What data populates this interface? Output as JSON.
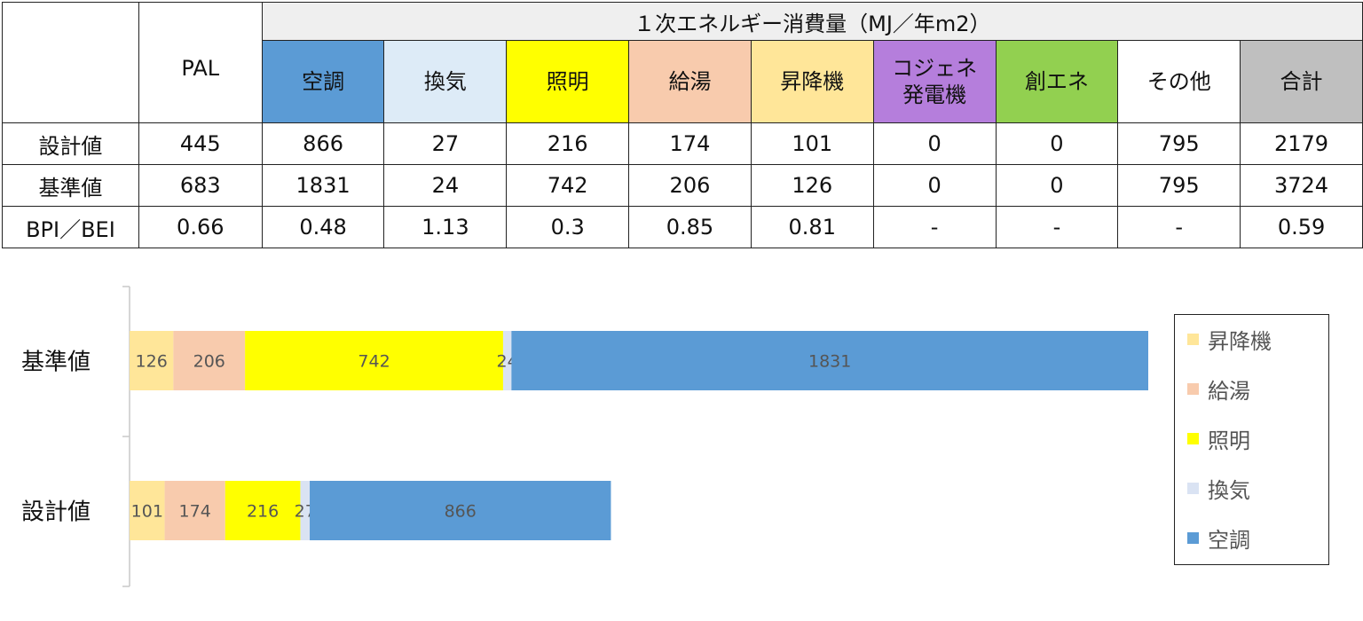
{
  "table": {
    "group_header": "１次エネルギー消費量（MJ／年m2）",
    "pal_header": "PAL",
    "categories": [
      {
        "label": "空調",
        "color": "#5b9bd5"
      },
      {
        "label": "換気",
        "color": "#ddebf7"
      },
      {
        "label": "照明",
        "color": "#ffff00"
      },
      {
        "label": "給湯",
        "color": "#f8cbad"
      },
      {
        "label": "昇降機",
        "color": "#ffe699"
      },
      {
        "label": "コジェネ発電機",
        "color": "#b57edc"
      },
      {
        "label": "創エネ",
        "color": "#92d050"
      },
      {
        "label": "その他",
        "color": "#ffffff"
      },
      {
        "label": "合計",
        "color": "#bfbfbf"
      }
    ],
    "rows": [
      {
        "label": "設計値",
        "pal": "445",
        "values": [
          "866",
          "27",
          "216",
          "174",
          "101",
          "0",
          "0",
          "795",
          "2179"
        ]
      },
      {
        "label": "基準値",
        "pal": "683",
        "values": [
          "1831",
          "24",
          "742",
          "206",
          "126",
          "0",
          "0",
          "795",
          "3724"
        ]
      },
      {
        "label": "BPI／BEI",
        "pal": "0.66",
        "values": [
          "0.48",
          "1.13",
          "0.3",
          "0.85",
          "0.81",
          "-",
          "-",
          "-",
          "0.59"
        ]
      }
    ]
  },
  "chart_data": {
    "type": "bar",
    "orientation": "horizontal",
    "stacked": true,
    "categories": [
      "基準値",
      "設計値"
    ],
    "series": [
      {
        "name": "昇降機",
        "color": "#ffe699",
        "values": [
          126,
          101
        ]
      },
      {
        "name": "給湯",
        "color": "#f8cbad",
        "values": [
          206,
          174
        ]
      },
      {
        "name": "照明",
        "color": "#ffff00",
        "values": [
          742,
          216
        ]
      },
      {
        "name": "換気",
        "color": "#dae3f3",
        "values": [
          24,
          27
        ]
      },
      {
        "name": "空調",
        "color": "#5b9bd5",
        "values": [
          1831,
          866
        ]
      }
    ],
    "legend_order": [
      "昇降機",
      "給湯",
      "照明",
      "換気",
      "空調"
    ],
    "legend_position": "right",
    "data_labels": true,
    "grid": false
  }
}
